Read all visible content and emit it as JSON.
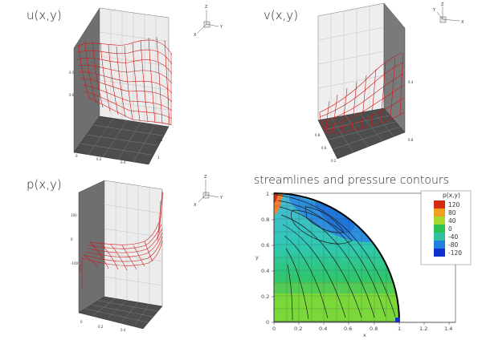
{
  "panels": {
    "u": {
      "title": "u(x,y)"
    },
    "v": {
      "title": "v(x,y)"
    },
    "p": {
      "title": "p(x,y)"
    },
    "s": {
      "title": "streamlines and pressure contours"
    }
  },
  "axes_triad": {
    "x": "X",
    "y": "Y",
    "z": "Z"
  },
  "chart_data": {
    "type": "heatmap",
    "xlabel": "x",
    "ylabel": "y",
    "x_ticks": [
      "0",
      "0.2",
      "0.4",
      "0.6",
      "0.8",
      "1",
      "1.2",
      "1.4"
    ],
    "y_ticks": [
      "0",
      "0.2",
      "0.4",
      "0.6",
      "0.8",
      "1"
    ],
    "xlim": [
      0,
      1.45
    ],
    "ylim": [
      0,
      1.05
    ],
    "legend": {
      "title": "p(x,y)",
      "levels": [
        {
          "label": "120",
          "color": "#d42a10"
        },
        {
          "label": "80",
          "color": "#f0a020"
        },
        {
          "label": "40",
          "color": "#a8d830"
        },
        {
          "label": "0",
          "color": "#30c050"
        },
        {
          "label": "-40",
          "color": "#30c0a0"
        },
        {
          "label": "-80",
          "color": "#2080e0"
        },
        {
          "label": "-120",
          "color": "#1030d0"
        }
      ]
    }
  },
  "colors": {
    "mesh": "#d01818",
    "wall": "#e6e6e6",
    "wall_dark": "#8a8a8a",
    "floor": "#4a4a4a"
  }
}
